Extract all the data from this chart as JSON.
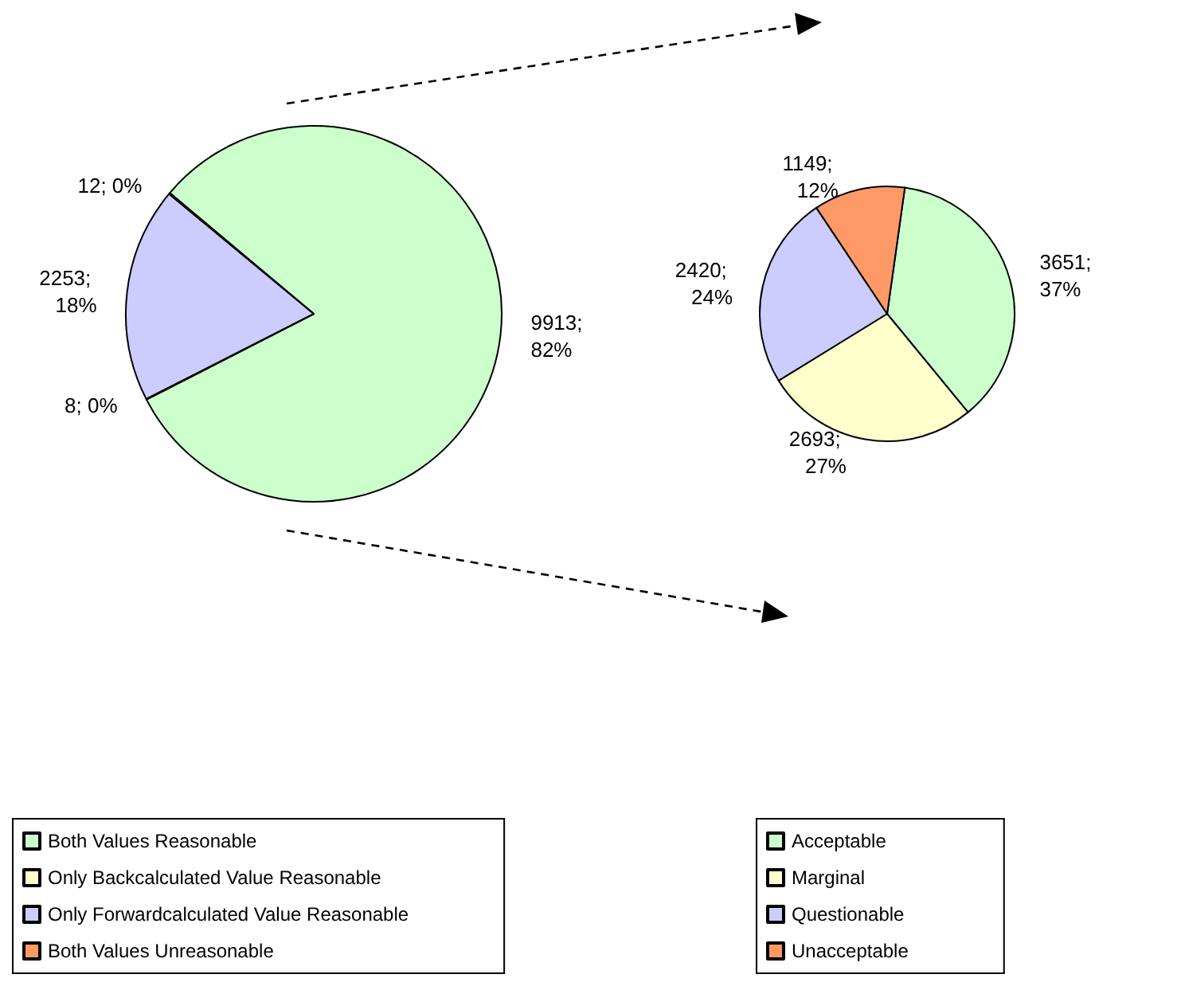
{
  "chart_data": [
    {
      "type": "pie",
      "categories": [
        "Both Values Reasonable",
        "Only Backcalculated Value Reasonable",
        "Only Forwardcalculated Value Reasonable",
        "Both Values Unreasonable"
      ],
      "values": [
        9913,
        8,
        2253,
        12
      ],
      "colors": [
        "#ccffcc",
        "#ffffcc",
        "#ccccff",
        "#ff9966"
      ],
      "value_labels": [
        "9913; 82%",
        "8; 0%",
        "2253; 18%",
        "12; 0%"
      ],
      "legend": "bottom"
    },
    {
      "type": "pie",
      "categories": [
        "Acceptable",
        "Marginal",
        "Questionable",
        "Unacceptable"
      ],
      "values": [
        3651,
        2693,
        2420,
        1149
      ],
      "colors": [
        "#ccffcc",
        "#ffffcc",
        "#ccccff",
        "#ff9966"
      ],
      "value_labels": [
        "3651; 37%",
        "2693; 27%",
        "2420; 24%",
        "1149; 12%"
      ],
      "legend": "bottom"
    }
  ]
}
